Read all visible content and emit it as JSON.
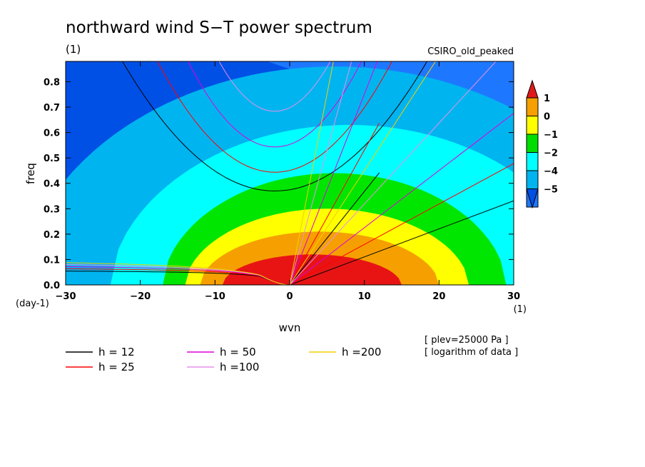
{
  "chart_data": {
    "type": "heatmap",
    "title": "northward wind S−T power spectrum",
    "subtitle_left": "(1)",
    "subtitle_right": "CSIRO_old_peaked",
    "xlabel": "wvn",
    "ylabel": "freq",
    "x_units": "(1)",
    "y_units": "(day-1)",
    "xlim": [
      -30,
      30
    ],
    "ylim": [
      0,
      0.88
    ],
    "xticks": [
      -30,
      -20,
      -10,
      0,
      10,
      20,
      30
    ],
    "xtick_labels": [
      "−30",
      "−20",
      "−10",
      "0",
      "10",
      "20",
      "30"
    ],
    "yticks": [
      0,
      0.1,
      0.2,
      0.3,
      0.4,
      0.5,
      0.6,
      0.7,
      0.8
    ],
    "ytick_labels": [
      "0.0",
      "0.1",
      "0.2",
      "0.3",
      "0.4",
      "0.5",
      "0.6",
      "0.7",
      "0.8"
    ],
    "notes": [
      "[ plev=25000 Pa ]",
      "[ logarithm of data ]"
    ],
    "colorbar": {
      "labels": [
        "1",
        "0",
        "−1",
        "−2",
        "−4",
        "−5"
      ],
      "colors": [
        "#e01a1a",
        "#f5a000",
        "#ffff00",
        "#00dd00",
        "#00ffff",
        "#00b4f0",
        "#1e78ff",
        "#0050e6"
      ]
    },
    "contour_levels": [
      {
        "color": "#e81414",
        "peak_freq": 0.12,
        "center_x": 3,
        "half_width": 12
      },
      {
        "color": "#f5a000",
        "peak_freq": 0.21,
        "center_x": 4,
        "half_width": 16
      },
      {
        "color": "#ffff00",
        "peak_freq": 0.3,
        "center_x": 5,
        "half_width": 19
      },
      {
        "color": "#00e600",
        "peak_freq": 0.44,
        "center_x": 6,
        "half_width": 23
      },
      {
        "color": "#00ffff",
        "peak_freq": 0.63,
        "center_x": 8,
        "half_width": 32
      },
      {
        "color": "#00b4f0",
        "peak_freq": 0.86,
        "center_x": 6,
        "half_width": 42
      }
    ],
    "background_color": "#1e78ff",
    "dispersion_curves": [
      {
        "name": "h = 12",
        "color": "#000000"
      },
      {
        "name": "h = 25",
        "color": "#ff0000"
      },
      {
        "name": "h = 50",
        "color": "#dd00dd"
      },
      {
        "name": "h =100",
        "color": "#e890e8"
      },
      {
        "name": "h =200",
        "color": "#f0d000"
      }
    ]
  }
}
